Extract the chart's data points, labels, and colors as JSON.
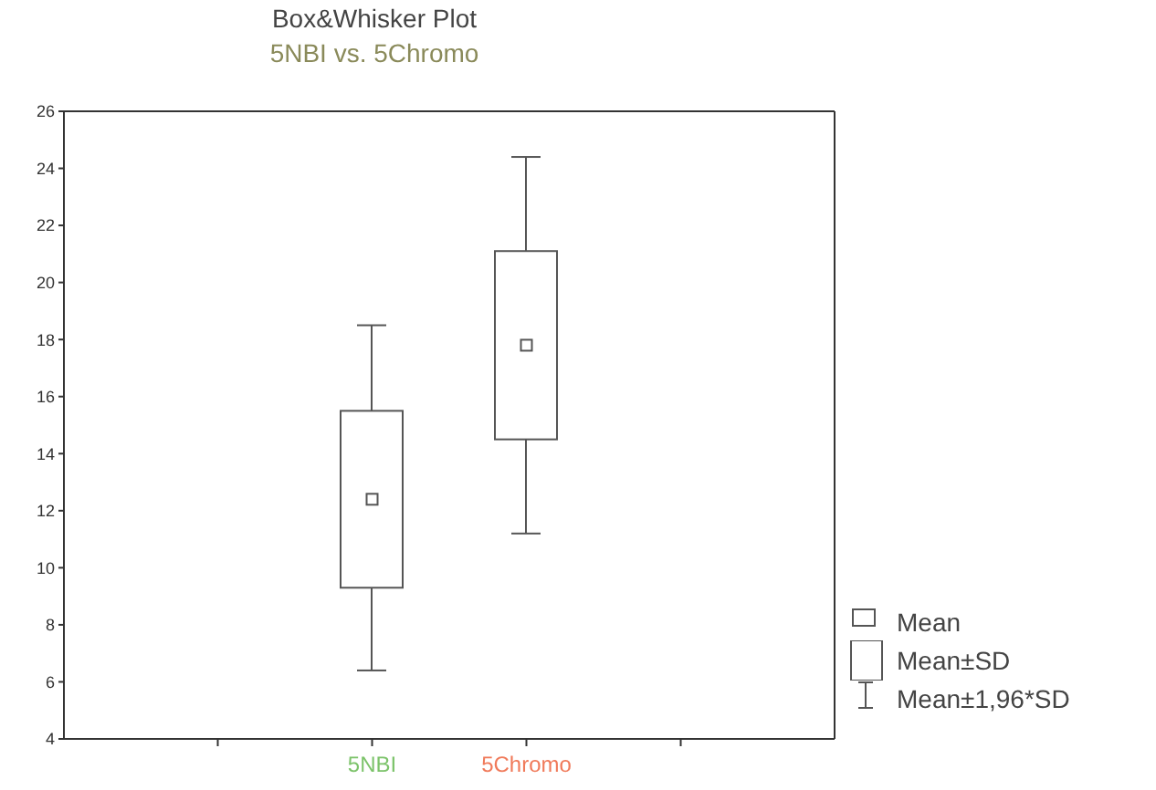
{
  "chart_data": {
    "type": "box",
    "title": "Box&Whisker Plot",
    "subtitle": "5NBI vs. 5Chromo",
    "categories": [
      null,
      "5NBI",
      "5Chromo",
      null
    ],
    "boxes": [
      null,
      {
        "low": 6.4,
        "q1": 9.3,
        "median": 12.4,
        "q3": 15.5,
        "high": 18.5
      },
      {
        "low": 11.2,
        "q1": 14.5,
        "median": 17.8,
        "q3": 21.1,
        "high": 24.4
      },
      null
    ],
    "color": "#555555",
    "ylim": [
      4,
      26
    ],
    "yticks": [
      4,
      6,
      8,
      10,
      12,
      14,
      16,
      18,
      20,
      22,
      24,
      26
    ],
    "annotations": [
      "Mean",
      "Mean±SD",
      "Mean±1,96*SD"
    ]
  }
}
